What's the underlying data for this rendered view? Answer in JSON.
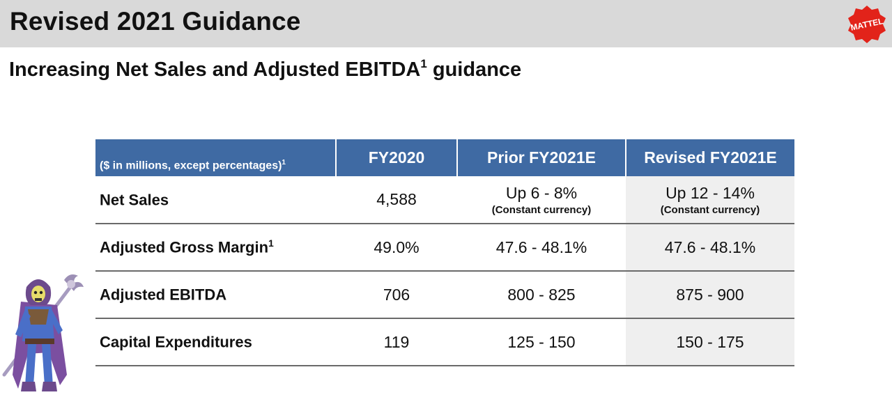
{
  "header": {
    "title": "Revised 2021 Guidance",
    "logo_text": "MATTEL",
    "logo_color": "#e2231a",
    "bar_color": "#d9d9d9"
  },
  "subtitle": {
    "text": "Increasing Net Sales and Adjusted EBITDA",
    "superscript": "1",
    "suffix": " guidance"
  },
  "table": {
    "header_color": "#3f6aa3",
    "columns": [
      {
        "label": "($ in millions, except percentages)",
        "sup": "1"
      },
      {
        "label": "FY2020"
      },
      {
        "label": "Prior FY2021E"
      },
      {
        "label": "Revised FY2021E"
      }
    ],
    "rows": [
      {
        "label": "Net Sales",
        "sup": "",
        "fy2020": "4,588",
        "prior": "Up 6 - 8%",
        "prior_note": "(Constant currency)",
        "revised": "Up 12 - 14%",
        "revised_note": "(Constant currency)"
      },
      {
        "label": "Adjusted Gross Margin",
        "sup": "1",
        "fy2020": "49.0%",
        "prior": "47.6 - 48.1%",
        "prior_note": "",
        "revised": "47.6 - 48.1%",
        "revised_note": ""
      },
      {
        "label": "Adjusted EBITDA",
        "sup": "",
        "fy2020": "706",
        "prior": "800 - 825",
        "prior_note": "",
        "revised": "875 - 900",
        "revised_note": ""
      },
      {
        "label": "Capital Expenditures",
        "sup": "",
        "fy2020": "119",
        "prior": "125 - 150",
        "prior_note": "",
        "revised": "150 - 175",
        "revised_note": ""
      }
    ]
  },
  "figure": {
    "icon": "skeletor-action-figure-icon"
  }
}
